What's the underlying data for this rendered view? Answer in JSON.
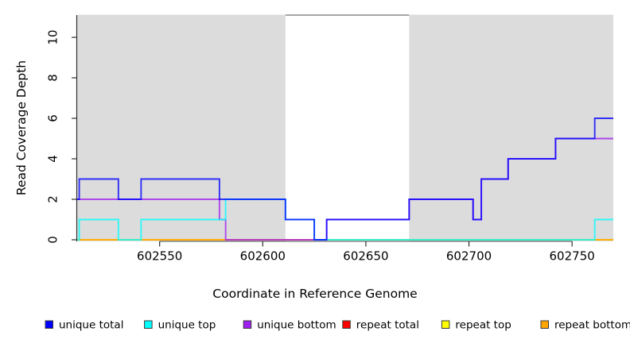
{
  "chart_data": {
    "type": "line",
    "step": true,
    "title": "",
    "xlabel": "Coordinate in Reference Genome",
    "ylabel": "Read Coverage Depth",
    "xlim": [
      602510,
      602770
    ],
    "ylim": [
      0,
      11
    ],
    "x_ticks": [
      602550,
      602600,
      602650,
      602700,
      602750
    ],
    "y_ticks": [
      0,
      2,
      4,
      6,
      8,
      10
    ],
    "grid": false,
    "legend_position": "bottom",
    "shade_color": "#dcdcdc",
    "shaded_regions": [
      {
        "from": 602510,
        "to": 602611
      },
      {
        "from": 602671,
        "to": 602770
      }
    ],
    "series": [
      {
        "name": "unique total",
        "color": "#0000ff",
        "points": [
          [
            602510,
            2
          ],
          [
            602511,
            3
          ],
          [
            602530,
            2
          ],
          [
            602541,
            3
          ],
          [
            602579,
            2
          ],
          [
            602611,
            1
          ],
          [
            602625,
            0
          ],
          [
            602631,
            1
          ],
          [
            602671,
            2
          ],
          [
            602702,
            1
          ],
          [
            602706,
            3
          ],
          [
            602719,
            4
          ],
          [
            602742,
            5
          ],
          [
            602761,
            6
          ],
          [
            602770,
            6
          ]
        ]
      },
      {
        "name": "unique top",
        "color": "#00ffff",
        "points": [
          [
            602510,
            0
          ],
          [
            602511,
            1
          ],
          [
            602530,
            0
          ],
          [
            602541,
            1
          ],
          [
            602582,
            2
          ],
          [
            602611,
            1
          ],
          [
            602625,
            0
          ],
          [
            602761,
            1
          ],
          [
            602770,
            1
          ]
        ]
      },
      {
        "name": "unique bottom",
        "color": "#a020f0",
        "points": [
          [
            602510,
            2
          ],
          [
            602579,
            1
          ],
          [
            602582,
            0
          ],
          [
            602631,
            1
          ],
          [
            602671,
            2
          ],
          [
            602702,
            1
          ],
          [
            602706,
            3
          ],
          [
            602719,
            4
          ],
          [
            602742,
            5
          ],
          [
            602770,
            5
          ]
        ]
      },
      {
        "name": "repeat total",
        "color": "#ff0000",
        "points": [
          [
            602510,
            0
          ],
          [
            602770,
            0
          ]
        ]
      },
      {
        "name": "repeat top",
        "color": "#ffff00",
        "points": [
          [
            602510,
            0
          ],
          [
            602770,
            0
          ]
        ]
      },
      {
        "name": "repeat bottom",
        "color": "#ffa500",
        "points": [
          [
            602510,
            0
          ],
          [
            602770,
            0
          ]
        ]
      }
    ],
    "draw_order": [
      "repeat total",
      "repeat top",
      "repeat bottom",
      "unique bottom",
      "unique top",
      "unique total"
    ],
    "legend": [
      {
        "label": "unique total",
        "color": "#0000ff"
      },
      {
        "label": "unique top",
        "color": "#00ffff"
      },
      {
        "label": "unique bottom",
        "color": "#a020f0"
      },
      {
        "label": "repeat total",
        "color": "#ff0000"
      },
      {
        "label": "repeat top",
        "color": "#ffff00"
      },
      {
        "label": "repeat bottom",
        "color": "#ffa500"
      }
    ]
  }
}
